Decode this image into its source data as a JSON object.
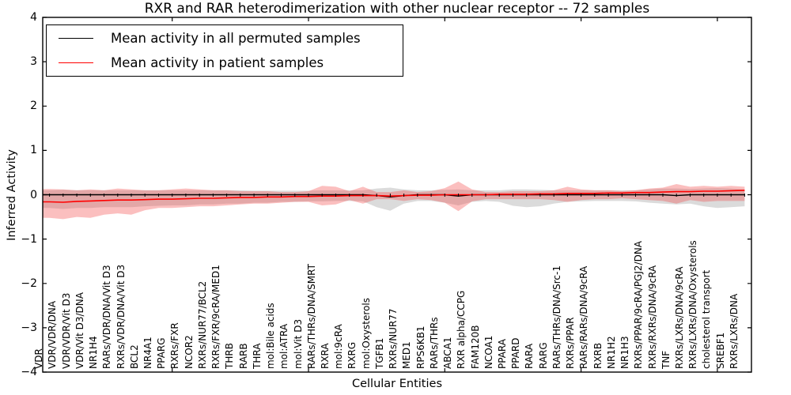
{
  "title": "RXR and RAR heterodimerization with other nuclear receptor -- 72 samples",
  "axes": {
    "xlabel": "Cellular Entities",
    "ylabel": "Inferred Activity",
    "ytick_labels": [
      "4",
      "3",
      "2",
      "1",
      "0",
      "−1",
      "−2",
      "−3",
      "−4"
    ],
    "ytick_values": [
      4,
      3,
      2,
      1,
      0,
      -1,
      -2,
      -3,
      -4
    ]
  },
  "legend": {
    "items": [
      {
        "label": "Mean activity in all permuted samples",
        "color": "#000000"
      },
      {
        "label": "Mean activity in patient samples",
        "color": "#ff0000"
      }
    ]
  },
  "chart_data": {
    "type": "area",
    "title": "RXR and RAR heterodimerization with other nuclear receptor -- 72 samples",
    "xlabel": "Cellular Entities",
    "ylabel": "Inferred Activity",
    "ylim": [
      -4,
      4
    ],
    "grid": false,
    "legend_position": "upper left",
    "xticks_every": 10,
    "categories": [
      "VDR",
      "VDR/VDR/DNA",
      "VDR/VDR/Vit D3",
      "VDR/Vit D3/DNA",
      "NR1H4",
      "RARs/VDR/DNA/Vit D3",
      "RXRs/VDR/DNA/Vit D3",
      "BCL2",
      "NR4A1",
      "PPARG",
      "RXRs/FXR",
      "NCOR2",
      "RXRs/NUR77/BCL2",
      "RXRs/FXR/9cRA/MED1",
      "THRB",
      "RARB",
      "THRA",
      "mol:Bile acids",
      "mol:ATRA",
      "mol:Vit D3",
      "RARs/THRs/DNA/SMRT",
      "RXRA",
      "mol:9cRA",
      "RXRG",
      "mol:Oxysterols",
      "TGFB1",
      "RXRs/NUR77",
      "MED1",
      "RPS6KB1",
      "RARs/THRs",
      "ABCA1",
      "RXR alpha/CCPG",
      "FAM120B",
      "NCOA1",
      "PPARA",
      "PPARD",
      "RARA",
      "RARG",
      "RARs/THRs/DNA/Src-1",
      "RXRs/PPAR",
      "RARs/RARs/DNA/9cRA",
      "RXRB",
      "NR1H2",
      "NR1H3",
      "RXRs/PPAR/9cRA/PGJ2/DNA",
      "RXRs/RXRs/DNA/9cRA",
      "TNF",
      "RXRs/LXRs/DNA/9cRA",
      "RXRs/LXRs/DNA/Oxysterols",
      "cholesterol transport",
      "SREBF1",
      "RXRs/LXRs/DNA"
    ],
    "series": [
      {
        "name": "Mean activity in all permuted samples",
        "kind": "line",
        "color": "#000000",
        "values": [
          0,
          0,
          0,
          0,
          0,
          0,
          0,
          0,
          0,
          0,
          0,
          0,
          0,
          0,
          0,
          0,
          0,
          0,
          0,
          0,
          0,
          0,
          0,
          0,
          -0.02,
          -0.05,
          -0.02,
          0,
          0,
          0,
          -0.03,
          0,
          0,
          0,
          0,
          0,
          0,
          0,
          0,
          0,
          0,
          0,
          0,
          0,
          0,
          0,
          -0.02,
          0,
          0,
          0,
          0,
          0
        ]
      },
      {
        "name": "Mean activity in patient samples",
        "kind": "line",
        "color": "#ff0000",
        "values": [
          -0.16,
          -0.17,
          -0.15,
          -0.14,
          -0.13,
          -0.12,
          -0.12,
          -0.11,
          -0.1,
          -0.1,
          -0.09,
          -0.08,
          -0.08,
          -0.07,
          -0.06,
          -0.06,
          -0.05,
          -0.05,
          -0.04,
          -0.04,
          -0.03,
          -0.03,
          -0.02,
          -0.02,
          -0.02,
          -0.03,
          -0.02,
          -0.01,
          -0.01,
          0.0,
          0.0,
          0.0,
          0.0,
          0.01,
          0.01,
          0.01,
          0.02,
          0.02,
          0.03,
          0.03,
          0.03,
          0.04,
          0.04,
          0.05,
          0.05,
          0.06,
          0.07,
          0.07,
          0.08,
          0.08,
          0.09,
          0.1
        ]
      },
      {
        "name": "Permuted samples spread",
        "kind": "band",
        "color": "rgba(125,125,125,0.28)",
        "upper": [
          0.1,
          0.11,
          0.1,
          0.1,
          0.1,
          0.1,
          0.1,
          0.1,
          0.1,
          0.1,
          0.1,
          0.1,
          0.1,
          0.1,
          0.1,
          0.09,
          0.09,
          0.09,
          0.09,
          0.09,
          0.1,
          0.1,
          0.1,
          0.1,
          0.14,
          0.16,
          0.12,
          0.1,
          0.1,
          0.11,
          0.12,
          0.1,
          0.1,
          0.1,
          0.12,
          0.12,
          0.11,
          0.1,
          0.1,
          0.1,
          0.1,
          0.1,
          0.1,
          0.1,
          0.12,
          0.14,
          0.14,
          0.13,
          0.14,
          0.15,
          0.14,
          0.12
        ],
        "lower": [
          -0.3,
          -0.32,
          -0.3,
          -0.3,
          -0.28,
          -0.28,
          -0.28,
          -0.26,
          -0.25,
          -0.24,
          -0.24,
          -0.22,
          -0.22,
          -0.2,
          -0.2,
          -0.18,
          -0.18,
          -0.16,
          -0.16,
          -0.15,
          -0.15,
          -0.14,
          -0.14,
          -0.15,
          -0.28,
          -0.36,
          -0.2,
          -0.14,
          -0.14,
          -0.18,
          -0.24,
          -0.16,
          -0.14,
          -0.16,
          -0.25,
          -0.28,
          -0.26,
          -0.2,
          -0.16,
          -0.15,
          -0.14,
          -0.14,
          -0.14,
          -0.15,
          -0.18,
          -0.2,
          -0.22,
          -0.2,
          -0.26,
          -0.3,
          -0.28,
          -0.26
        ]
      },
      {
        "name": "Patient samples spread",
        "kind": "band",
        "color": "rgba(242,60,60,0.33)",
        "upper": [
          0.13,
          0.12,
          0.1,
          0.12,
          0.1,
          0.14,
          0.12,
          0.1,
          0.1,
          0.12,
          0.14,
          0.12,
          0.1,
          0.1,
          0.08,
          0.08,
          0.08,
          0.06,
          0.06,
          0.08,
          0.2,
          0.18,
          0.08,
          0.18,
          0.06,
          0.06,
          0.1,
          0.06,
          0.08,
          0.15,
          0.3,
          0.12,
          0.06,
          0.06,
          0.08,
          0.08,
          0.08,
          0.1,
          0.18,
          0.12,
          0.1,
          0.1,
          0.08,
          0.1,
          0.14,
          0.16,
          0.24,
          0.18,
          0.2,
          0.18,
          0.2,
          0.18
        ],
        "lower": [
          -0.52,
          -0.55,
          -0.5,
          -0.52,
          -0.45,
          -0.42,
          -0.45,
          -0.35,
          -0.3,
          -0.3,
          -0.28,
          -0.26,
          -0.26,
          -0.24,
          -0.22,
          -0.2,
          -0.2,
          -0.18,
          -0.16,
          -0.16,
          -0.24,
          -0.22,
          -0.12,
          -0.2,
          -0.1,
          -0.1,
          -0.14,
          -0.1,
          -0.12,
          -0.18,
          -0.37,
          -0.15,
          -0.1,
          -0.1,
          -0.1,
          -0.1,
          -0.1,
          -0.12,
          -0.16,
          -0.12,
          -0.1,
          -0.1,
          -0.08,
          -0.1,
          -0.12,
          -0.14,
          -0.2,
          -0.12,
          -0.16,
          -0.14,
          -0.14,
          -0.14
        ]
      }
    ]
  }
}
